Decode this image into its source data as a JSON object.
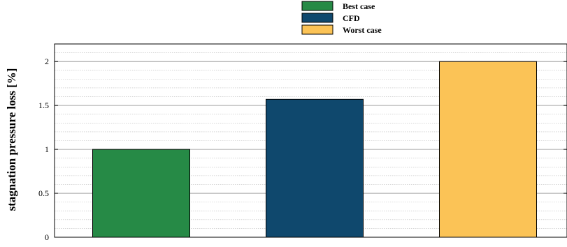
{
  "chart_data": {
    "type": "bar",
    "categories": [
      "Best case",
      "CFD",
      "Worst case"
    ],
    "values": [
      1.0,
      1.57,
      2.0
    ],
    "colors": [
      "#268a46",
      "#0f486d",
      "#fbc356"
    ],
    "legend": [
      "Best case",
      "CFD",
      "Worst case"
    ],
    "legend_position": "top-center",
    "title": "",
    "xlabel": "",
    "ylabel": "stagnation pressure loss [%]",
    "ylim": [
      0,
      2.2
    ],
    "yticks": [
      0,
      0.5,
      1,
      1.5,
      2
    ],
    "ytick_labels": [
      "0",
      "0.5",
      "1",
      "1.5",
      "2"
    ],
    "grid": "horizontal major and minor"
  }
}
